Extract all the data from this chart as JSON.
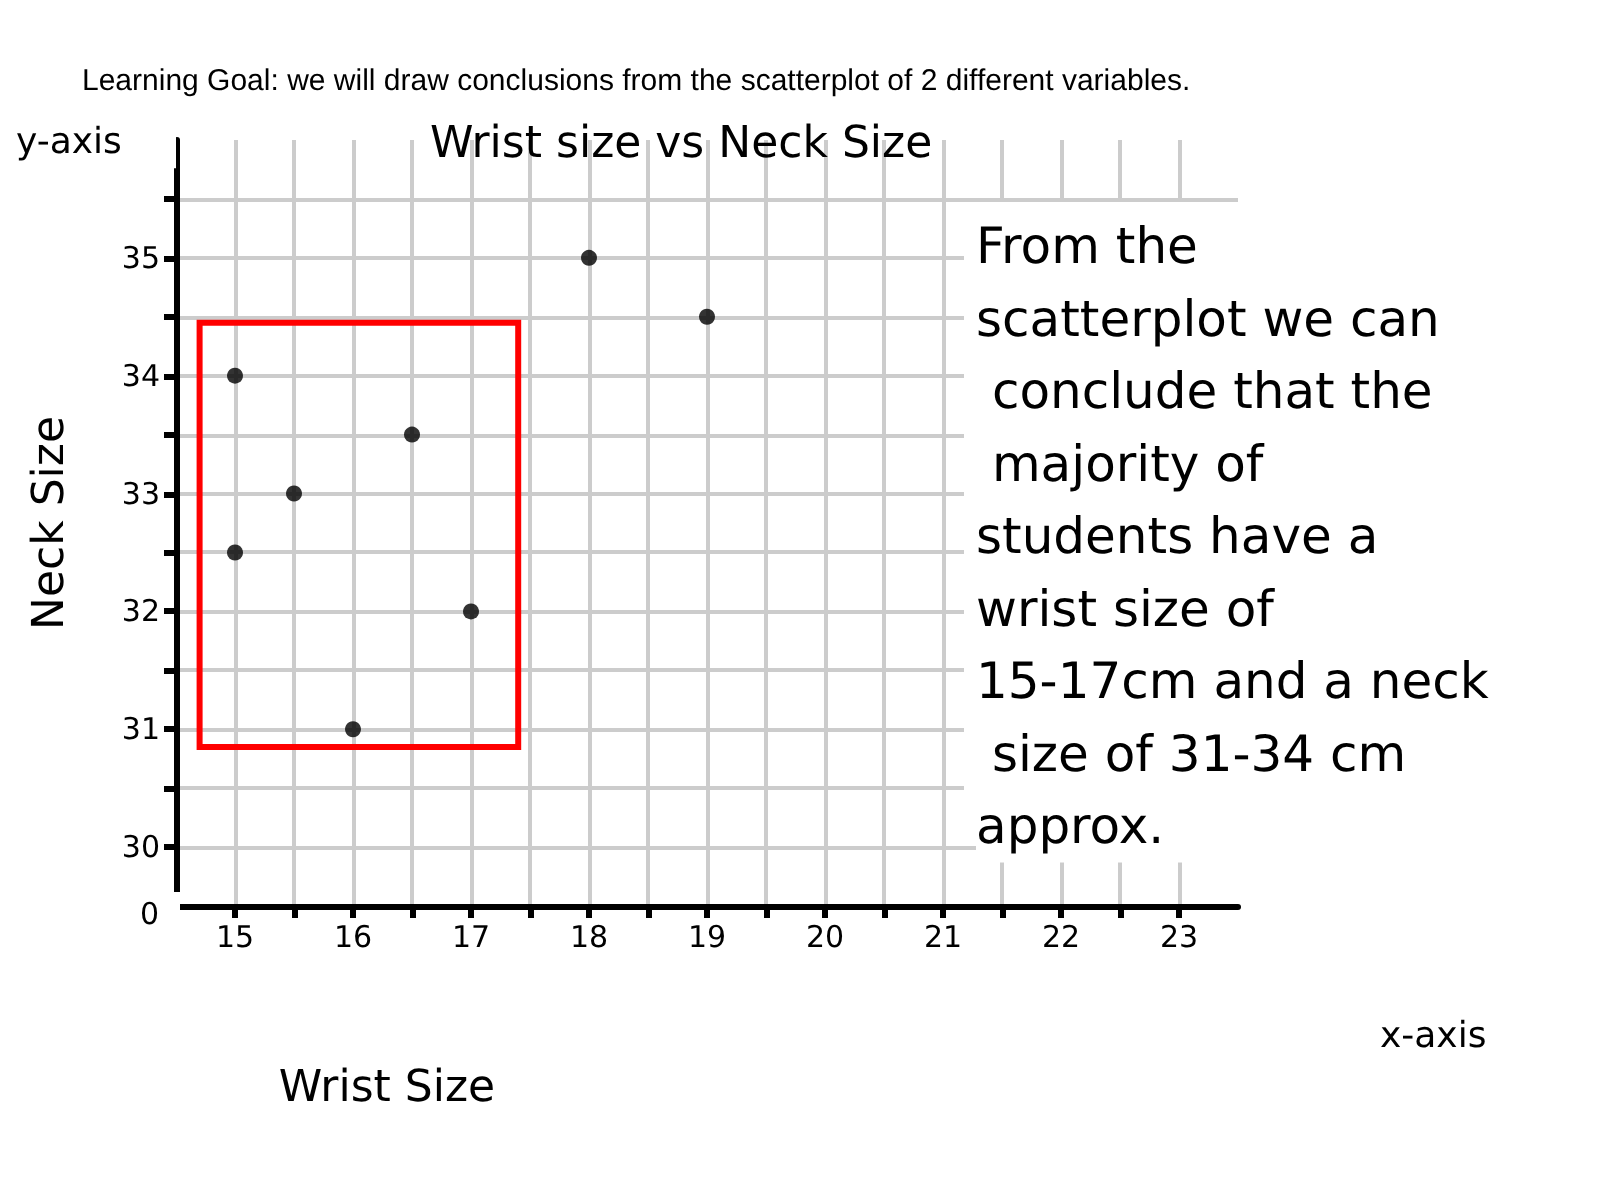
{
  "chart_data": {
    "type": "scatter",
    "title": "Learning Goal: we will draw conclusions from the scatterplot of 2 different variables.",
    "subtitle": "Wrist size vs Neck Size",
    "xlabel": "Wrist Size",
    "ylabel": "Neck Size",
    "x": [
      15,
      16.5,
      15.5,
      15,
      17,
      16,
      18,
      19
    ],
    "series": [
      {
        "color": "#000000",
        "values": [
          34,
          33.5,
          33,
          32.5,
          32,
          31,
          35,
          34.5
        ]
      }
    ],
    "xlim": [
      14.5,
      23.5
    ],
    "xticks": [
      15,
      {
        "value": 15.5,
        "label": null
      },
      16,
      {
        "value": 16.5,
        "label": null
      },
      17,
      {
        "value": 17.5,
        "label": null
      },
      18,
      {
        "value": 18.5,
        "label": null
      },
      19,
      {
        "value": 19.5,
        "label": null
      },
      20,
      {
        "value": 20.5,
        "label": null
      },
      21,
      {
        "value": 21.5,
        "label": null
      },
      22,
      {
        "value": 22.5,
        "label": null
      },
      23
    ],
    "ylim": [
      29.5,
      36
    ],
    "yticks": [
      30,
      {
        "value": 30.5,
        "label": null
      },
      31,
      {
        "value": 31.5,
        "label": null
      },
      32,
      {
        "value": 32.5,
        "label": null
      },
      33,
      {
        "value": 33.5,
        "label": null
      },
      34,
      {
        "value": 34.5,
        "label": null
      },
      35,
      {
        "value": 35.5,
        "label": null
      }
    ],
    "annotations": [
      "From the scatterplot we can conclude that the majority of students have a wrist size of 15-17cm and a neck size of 31-34 cm approx.",
      "y-axis",
      "x-axis",
      "0"
    ],
    "grid": true,
    "marker": "circle"
  }
}
